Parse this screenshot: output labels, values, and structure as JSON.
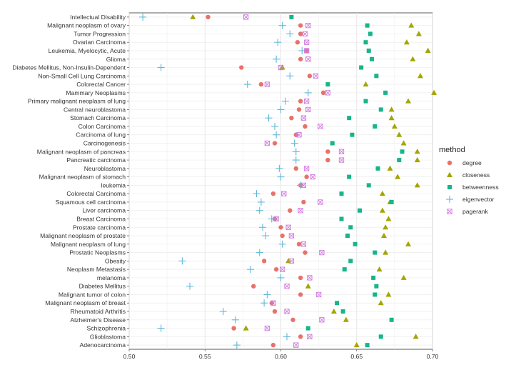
{
  "chart_data": {
    "type": "scatter",
    "xlim": [
      0.5,
      0.7
    ],
    "x_ticks": [
      "0.50",
      "0.55",
      "0.60",
      "0.65",
      "0.70"
    ],
    "x_tick_values": [
      0.5,
      0.55,
      0.6,
      0.65,
      0.7
    ],
    "legend": {
      "title": "method",
      "position": "right",
      "entries": [
        "degree",
        "closeness",
        "betweenness",
        "eigenvector",
        "pagerank"
      ]
    },
    "colors": {
      "degree": "#E8726A",
      "closeness": "#A3A500",
      "betweenness": "#17B589",
      "eigenvector": "#5FB8D6",
      "pagerank": "#D17CE0"
    },
    "markers": {
      "degree": "circle",
      "closeness": "triangle",
      "betweenness": "square",
      "eigenvector": "plus",
      "pagerank": "boxed-x"
    },
    "categories": [
      "Intellectual Disability",
      "Malignant neoplasm of ovary",
      "Tumor Progression",
      "Ovarian Carcinoma",
      "Leukemia, Myelocytic, Acute",
      "Glioma",
      "Diabetes Mellitus, Non-Insulin-Dependent",
      "Non-Small Cell Lung Carcinoma",
      "Colorectal Cancer",
      "Mammary Neoplasms",
      "Primary malignant neoplasm of lung",
      "Central neuroblastoma",
      "Stomach Carcinoma",
      "Colon Carcinoma",
      "Carcinoma of lung",
      "Carcinogenesis",
      "Malignant neoplasm of pancreas",
      "Pancreatic carcinoma",
      "Neuroblastoma",
      "Malignant neoplasm of stomach",
      "leukemia",
      "Colorectal Carcinoma",
      "Squamous cell carcinoma",
      "Liver carcinoma",
      "Breast Carcinoma",
      "Prostate carcinoma",
      "Malignant neoplasm of prostate",
      "Malignant neoplasm of lung",
      "Prostatic Neoplasms",
      "Obesity",
      "Neoplasm Metastasis",
      "melanoma",
      "Diabetes Mellitus",
      "Malignant tumor of colon",
      "Malignant neoplasm of breast",
      "Rheumatoid Arthritis",
      "Alzheimer's Disease",
      "Schizophrenia",
      "Glioblastoma",
      "Adenocarcinoma"
    ],
    "series": [
      {
        "name": "degree",
        "values": [
          0.552,
          0.613,
          0.613,
          0.611,
          0.617,
          0.613,
          0.574,
          0.619,
          0.587,
          0.628,
          0.613,
          0.612,
          0.607,
          0.616,
          0.61,
          0.596,
          0.631,
          0.631,
          0.61,
          0.617,
          0.613,
          0.595,
          0.615,
          0.606,
          0.596,
          0.6,
          0.601,
          0.612,
          0.616,
          0.589,
          0.597,
          0.613,
          0.582,
          0.613,
          0.594,
          0.596,
          0.608,
          0.569,
          0.613,
          0.595
        ]
      },
      {
        "name": "closeness",
        "values": [
          0.542,
          0.686,
          0.691,
          0.683,
          0.697,
          0.687,
          0.601,
          0.692,
          0.656,
          0.701,
          0.684,
          0.673,
          0.673,
          0.675,
          0.678,
          0.681,
          0.69,
          0.69,
          0.672,
          0.677,
          0.69,
          0.667,
          0.672,
          0.667,
          0.671,
          0.669,
          0.668,
          0.684,
          0.669,
          0.605,
          0.665,
          0.681,
          0.618,
          0.671,
          0.666,
          0.635,
          0.643,
          0.577,
          0.689,
          0.65
        ]
      },
      {
        "name": "betweenness",
        "values": [
          0.607,
          0.657,
          0.659,
          0.656,
          0.658,
          0.66,
          0.653,
          0.663,
          0.631,
          0.669,
          0.656,
          0.666,
          0.645,
          0.662,
          0.647,
          0.634,
          0.68,
          0.678,
          0.664,
          0.645,
          0.658,
          0.64,
          0.673,
          0.652,
          0.64,
          0.646,
          0.644,
          0.649,
          0.662,
          0.646,
          0.642,
          0.661,
          0.663,
          0.662,
          0.637,
          0.641,
          0.673,
          0.618,
          0.666,
          0.657
        ]
      },
      {
        "name": "eigenvector",
        "values": [
          0.509,
          0.601,
          0.606,
          0.598,
          0.614,
          0.597,
          0.521,
          0.606,
          0.578,
          0.618,
          0.603,
          0.6,
          0.592,
          0.596,
          0.597,
          0.609,
          0.61,
          0.61,
          0.599,
          0.6,
          0.613,
          0.584,
          0.587,
          0.586,
          0.594,
          0.588,
          0.59,
          0.601,
          0.586,
          0.535,
          0.58,
          0.6,
          0.54,
          0.591,
          0.589,
          0.562,
          0.57,
          0.521,
          0.604,
          0.571
        ]
      },
      {
        "name": "pagerank",
        "values": [
          0.577,
          0.618,
          0.616,
          0.617,
          0.617,
          0.618,
          0.6,
          0.623,
          0.591,
          0.631,
          0.617,
          0.618,
          0.615,
          0.626,
          0.612,
          0.591,
          0.64,
          0.64,
          0.617,
          0.621,
          0.615,
          0.602,
          0.626,
          0.613,
          0.597,
          0.605,
          0.607,
          0.615,
          0.627,
          0.607,
          0.601,
          0.619,
          0.604,
          0.625,
          0.595,
          0.604,
          0.627,
          0.591,
          0.619,
          0.61
        ]
      }
    ]
  }
}
